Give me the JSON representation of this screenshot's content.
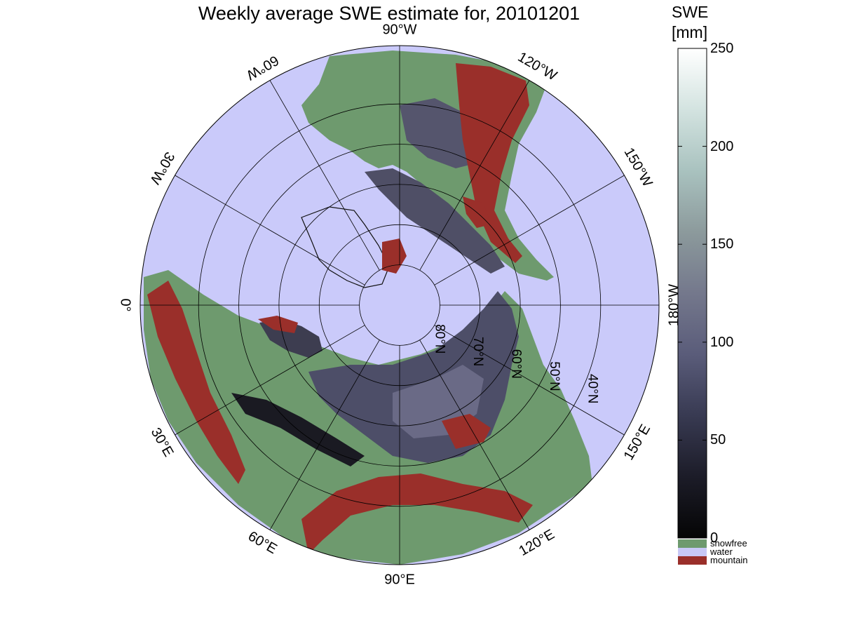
{
  "title": "Weekly average SWE estimate for, 20101201",
  "colorbar": {
    "title_line1": "SWE",
    "title_line2": "[mm]",
    "ticks": [
      "250",
      "200",
      "150",
      "100",
      "50",
      "0"
    ],
    "range": [
      0,
      250
    ],
    "gradient_colors": [
      "#050505",
      "#1c1c28",
      "#383a52",
      "#5a5c7a",
      "#74788c",
      "#8c9a9c",
      "#a9c2bf",
      "#d3e3e0",
      "#ffffff"
    ],
    "categories": [
      {
        "label": "snowfree",
        "color": "#6e9a6e"
      },
      {
        "label": "water",
        "color": "#c8c8f6"
      },
      {
        "label": "mountain",
        "color": "#9a2f2a"
      }
    ]
  },
  "map": {
    "projection": "north polar azimuthal",
    "ocean_color": "#cacafa",
    "land_color": "#6e9a6e",
    "lon_labels": [
      {
        "text": "90°W",
        "lon": -90
      },
      {
        "text": "120°W",
        "lon": -120
      },
      {
        "text": "150°W",
        "lon": -150
      },
      {
        "text": "180°W",
        "lon": 180
      },
      {
        "text": "150°E",
        "lon": 150
      },
      {
        "text": "120°E",
        "lon": 120
      },
      {
        "text": "90°E",
        "lon": 90
      },
      {
        "text": "60°E",
        "lon": 60
      },
      {
        "text": "30°E",
        "lon": 30
      },
      {
        "text": "0°",
        "lon": 0
      },
      {
        "text": "30°W",
        "lon": -30
      },
      {
        "text": "60°W",
        "lon": -60
      }
    ],
    "lat_labels": [
      {
        "text": "80°N",
        "lat": 80
      },
      {
        "text": "70°N",
        "lat": 70
      },
      {
        "text": "60°N",
        "lat": 60
      },
      {
        "text": "50°N",
        "lat": 50
      },
      {
        "text": "40°N",
        "lat": 40
      }
    ]
  }
}
